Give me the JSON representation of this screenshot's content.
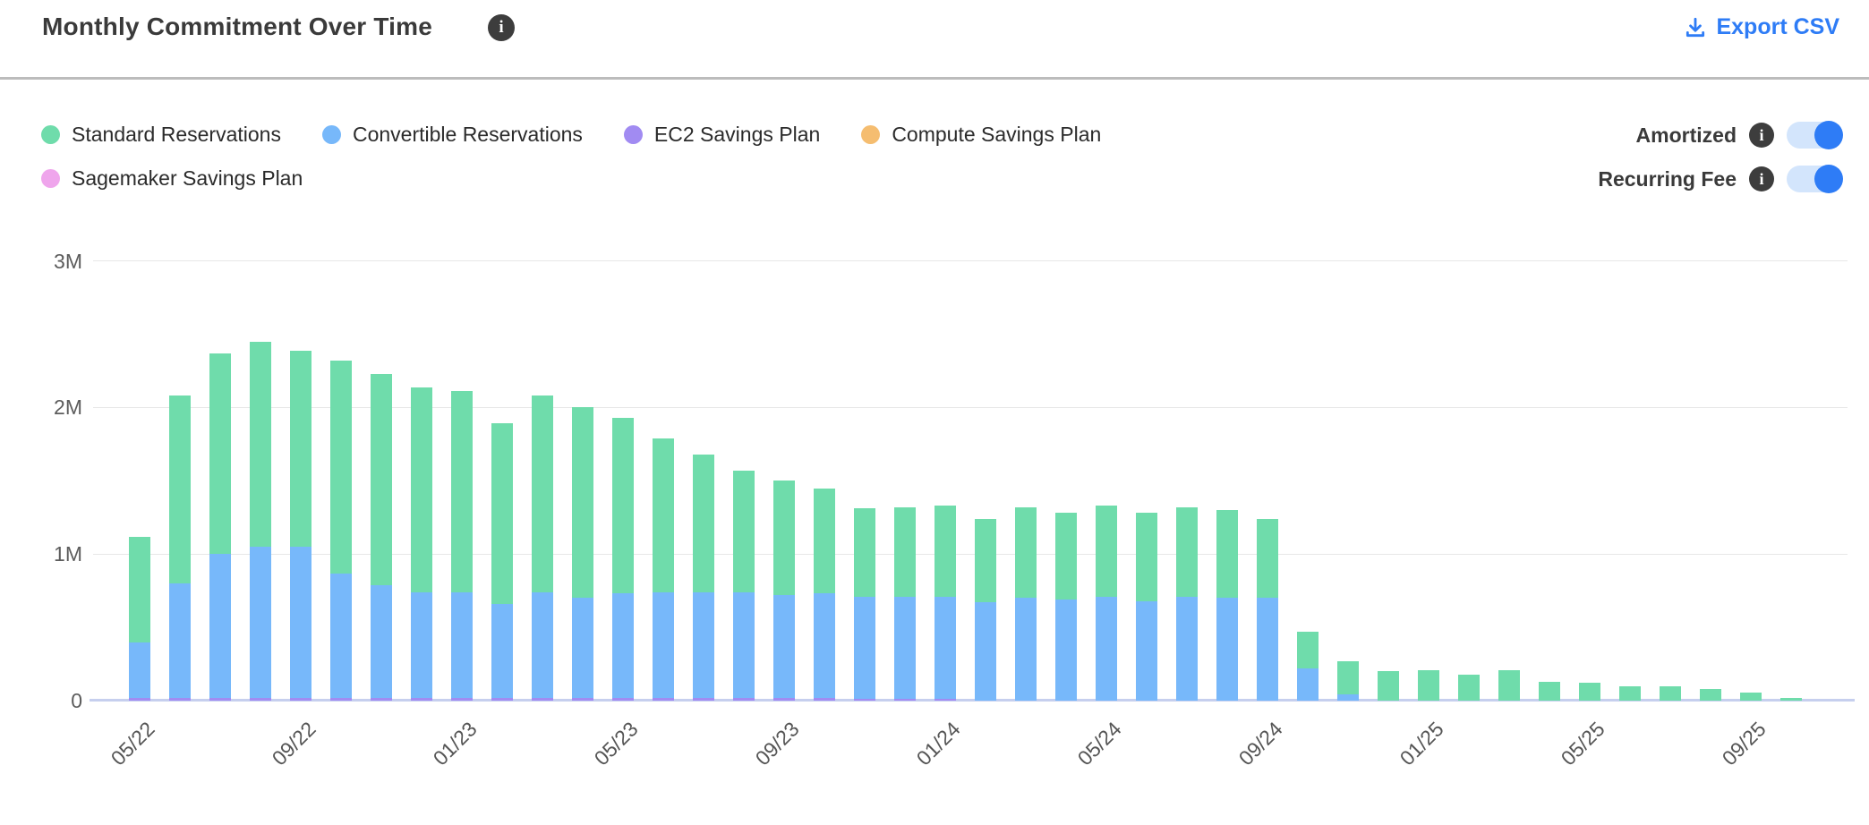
{
  "header": {
    "title": "Monthly Commitment Over Time",
    "title_info_icon": "i",
    "export_label": "Export CSV"
  },
  "legend": {
    "rows": [
      [
        {
          "label": "Standard Reservations",
          "color": "#6FDCAB"
        },
        {
          "label": "Convertible Reservations",
          "color": "#77B8FA"
        },
        {
          "label": "EC2 Savings Plan",
          "color": "#A18BF2"
        },
        {
          "label": "Compute Savings Plan",
          "color": "#F5BD70"
        }
      ],
      [
        {
          "label": "Sagemaker Savings Plan",
          "color": "#EFA5EC"
        }
      ]
    ]
  },
  "toggles": [
    {
      "label": "Amortized",
      "state": "on"
    },
    {
      "label": "Recurring Fee",
      "state": "on"
    }
  ],
  "accent_colors": {
    "link_blue": "#2E7CF6",
    "toggle_track": "#D3E5FC",
    "info_badge": "#3D3D3D"
  },
  "chart_data": {
    "type": "bar",
    "stacked": true,
    "title": "Monthly Commitment Over Time",
    "xlabel": "",
    "ylabel": "",
    "ylim": [
      0,
      3
    ],
    "unit": "M",
    "grid": true,
    "y_ticks": [
      {
        "value": 0,
        "label": "0"
      },
      {
        "value": 1,
        "label": "1M"
      },
      {
        "value": 2,
        "label": "2M"
      },
      {
        "value": 3,
        "label": "3M"
      }
    ],
    "x_tick_labels": [
      "05/22",
      "09/22",
      "01/23",
      "05/23",
      "09/23",
      "01/24",
      "05/24",
      "09/24",
      "01/25",
      "05/25",
      "09/25"
    ],
    "x_label_every": 4,
    "categories": [
      "05/22",
      "06/22",
      "07/22",
      "08/22",
      "09/22",
      "10/22",
      "11/22",
      "12/22",
      "01/23",
      "02/23",
      "03/23",
      "04/23",
      "05/23",
      "06/23",
      "07/23",
      "08/23",
      "09/23",
      "10/23",
      "11/23",
      "12/23",
      "01/24",
      "02/24",
      "03/24",
      "04/24",
      "05/24",
      "06/24",
      "07/24",
      "08/24",
      "09/24",
      "10/24",
      "11/24",
      "12/24",
      "01/25",
      "02/25",
      "03/25",
      "04/25",
      "05/25",
      "06/25",
      "07/25",
      "08/25",
      "09/25",
      "10/25"
    ],
    "series": [
      {
        "name": "EC2 Savings Plan",
        "color": "#A18BF2",
        "stack_order": 0,
        "values": [
          0.02,
          0.02,
          0.02,
          0.02,
          0.02,
          0.02,
          0.02,
          0.02,
          0.02,
          0.02,
          0.02,
          0.02,
          0.02,
          0.02,
          0.02,
          0.02,
          0.02,
          0.02,
          0.01,
          0.01,
          0.01,
          0,
          0,
          0,
          0,
          0,
          0,
          0,
          0,
          0,
          0,
          0,
          0,
          0,
          0,
          0,
          0,
          0,
          0,
          0,
          0,
          0
        ]
      },
      {
        "name": "Convertible Reservations",
        "color": "#77B8FA",
        "stack_order": 1,
        "values": [
          0.38,
          0.78,
          0.98,
          1.03,
          1.03,
          0.85,
          0.77,
          0.72,
          0.72,
          0.64,
          0.72,
          0.68,
          0.71,
          0.72,
          0.72,
          0.72,
          0.7,
          0.71,
          0.7,
          0.7,
          0.7,
          0.67,
          0.7,
          0.69,
          0.71,
          0.68,
          0.71,
          0.7,
          0.7,
          0.22,
          0.04,
          0,
          0,
          0,
          0,
          0,
          0,
          0,
          0,
          0,
          0,
          0
        ]
      },
      {
        "name": "Standard Reservations",
        "color": "#6FDCAB",
        "stack_order": 2,
        "values": [
          0.72,
          1.28,
          1.37,
          1.4,
          1.34,
          1.45,
          1.44,
          1.4,
          1.37,
          1.23,
          1.34,
          1.3,
          1.2,
          1.05,
          0.94,
          0.83,
          0.78,
          0.72,
          0.6,
          0.61,
          0.62,
          0.57,
          0.62,
          0.59,
          0.62,
          0.6,
          0.61,
          0.6,
          0.54,
          0.25,
          0.23,
          0.2,
          0.21,
          0.18,
          0.21,
          0.13,
          0.12,
          0.1,
          0.1,
          0.08,
          0.055,
          0.02
        ]
      },
      {
        "name": "Compute Savings Plan",
        "color": "#F5BD70",
        "stack_order": 3,
        "values": [
          0,
          0,
          0,
          0,
          0,
          0,
          0,
          0,
          0,
          0,
          0,
          0,
          0,
          0,
          0,
          0,
          0,
          0,
          0,
          0,
          0,
          0,
          0,
          0,
          0,
          0,
          0,
          0,
          0,
          0,
          0,
          0,
          0,
          0,
          0,
          0,
          0,
          0,
          0,
          0,
          0,
          0
        ]
      },
      {
        "name": "Sagemaker Savings Plan",
        "color": "#EFA5EC",
        "stack_order": 4,
        "values": [
          0,
          0,
          0,
          0,
          0,
          0,
          0,
          0,
          0,
          0,
          0,
          0,
          0,
          0,
          0,
          0,
          0,
          0,
          0,
          0,
          0,
          0,
          0,
          0,
          0,
          0,
          0,
          0,
          0,
          0,
          0,
          0,
          0,
          0,
          0,
          0,
          0,
          0,
          0,
          0,
          0,
          0
        ]
      }
    ],
    "totals": [
      1.12,
      2.08,
      2.37,
      2.45,
      2.39,
      2.32,
      2.23,
      2.14,
      2.11,
      1.89,
      2.08,
      2.0,
      1.93,
      1.79,
      1.68,
      1.57,
      1.5,
      1.45,
      1.31,
      1.32,
      1.33,
      1.24,
      1.32,
      1.28,
      1.33,
      1.28,
      1.32,
      1.3,
      1.24,
      0.47,
      0.27,
      0.2,
      0.21,
      0.18,
      0.21,
      0.13,
      0.12,
      0.1,
      0.1,
      0.08,
      0.055,
      0.02
    ],
    "legend_position": "top-left"
  }
}
